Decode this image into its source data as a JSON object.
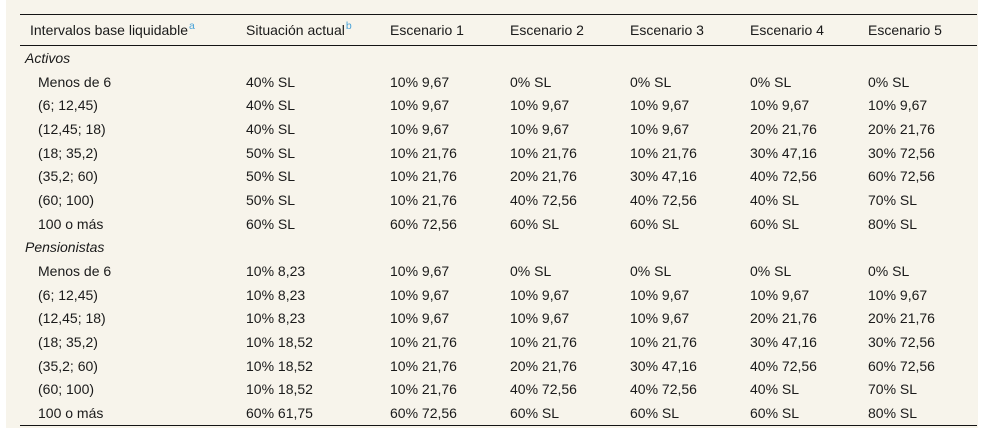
{
  "table": {
    "bg_color": "#f7f4eb",
    "rule_color": "#141414",
    "accent_color": "#4aa3d9",
    "footnote_a": "a",
    "footnote_b": "b",
    "columns": [
      "Intervalos base liquidable",
      "Situación actual",
      "Escenario 1",
      "Escenario 2",
      "Escenario 3",
      "Escenario 4",
      "Escenario 5"
    ],
    "groups": [
      {
        "label": "Activos",
        "rows": [
          {
            "label": "Menos de 6",
            "values": [
              "40% SL",
              "10% 9,67",
              "0% SL",
              "0% SL",
              "0% SL",
              "0% SL"
            ]
          },
          {
            "label": "(6; 12,45)",
            "values": [
              "40% SL",
              "10% 9,67",
              "10% 9,67",
              "10% 9,67",
              "10% 9,67",
              "10% 9,67"
            ]
          },
          {
            "label": "(12,45; 18)",
            "values": [
              "40% SL",
              "10% 9,67",
              "10% 9,67",
              "10% 9,67",
              "20% 21,76",
              "20% 21,76"
            ]
          },
          {
            "label": "(18; 35,2)",
            "values": [
              "50% SL",
              "10% 21,76",
              "10% 21,76",
              "10% 21,76",
              "30% 47,16",
              "30% 72,56"
            ]
          },
          {
            "label": "(35,2; 60)",
            "values": [
              "50% SL",
              "10% 21,76",
              "20% 21,76",
              "30% 47,16",
              "40% 72,56",
              "60% 72,56"
            ]
          },
          {
            "label": "(60; 100)",
            "values": [
              "50% SL",
              "10% 21,76",
              "40% 72,56",
              "40% 72,56",
              "40% SL",
              "70% SL"
            ]
          },
          {
            "label": "100 o más",
            "values": [
              "60% SL",
              "60% 72,56",
              "60% SL",
              "60% SL",
              "60% SL",
              "80% SL"
            ]
          }
        ]
      },
      {
        "label": "Pensionistas",
        "rows": [
          {
            "label": "Menos de 6",
            "values": [
              "10% 8,23",
              "10% 9,67",
              "0% SL",
              "0% SL",
              "0% SL",
              "0% SL"
            ]
          },
          {
            "label": "(6; 12,45)",
            "values": [
              "10% 8,23",
              "10% 9,67",
              "10% 9,67",
              "10% 9,67",
              "10% 9,67",
              "10% 9,67"
            ]
          },
          {
            "label": "(12,45; 18)",
            "values": [
              "10% 8,23",
              "10% 9,67",
              "10% 9,67",
              "10% 9,67",
              "20% 21,76",
              "20% 21,76"
            ]
          },
          {
            "label": "(18; 35,2)",
            "values": [
              "10% 18,52",
              "10% 21,76",
              "10% 21,76",
              "10% 21,76",
              "30% 47,16",
              "30% 72,56"
            ]
          },
          {
            "label": "(35,2; 60)",
            "values": [
              "10% 18,52",
              "10% 21,76",
              "20% 21,76",
              "30% 47,16",
              "40% 72,56",
              "60% 72,56"
            ]
          },
          {
            "label": "(60; 100)",
            "values": [
              "10% 18,52",
              "10% 21,76",
              "40% 72,56",
              "40% 72,56",
              "40% SL",
              "70% SL"
            ]
          },
          {
            "label": "100 o más",
            "values": [
              "60% 61,75",
              "60% 72,56",
              "60% SL",
              "60% SL",
              "60% SL",
              "80% SL"
            ]
          }
        ]
      }
    ]
  }
}
